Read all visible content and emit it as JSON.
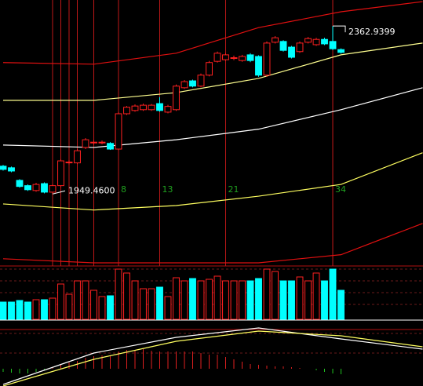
{
  "chart_data": {
    "type": "candlestick",
    "x": [
      -6,
      -5,
      -4,
      -3,
      -2,
      -1,
      0,
      1,
      2,
      3,
      4,
      5,
      6,
      7,
      8,
      9,
      10,
      11,
      12,
      13,
      14,
      15,
      16,
      17,
      18,
      19,
      20,
      21,
      22,
      23,
      24,
      25,
      26,
      27,
      28,
      29,
      30,
      31,
      32,
      33,
      34,
      35
    ],
    "open": [
      2018,
      2014,
      1983,
      1970,
      1958,
      1975,
      1954,
      1970,
      2027,
      2026,
      2064,
      2076,
      2076,
      2074,
      2060,
      2147,
      2155,
      2157,
      2157,
      2172,
      2151,
      2157,
      2211,
      2228,
      2215,
      2242,
      2276,
      2280,
      2284,
      2278,
      2292,
      2288,
      2242,
      2323,
      2325,
      2311,
      2300,
      2323,
      2317,
      2330,
      2325,
      2305
    ],
    "close": [
      2010,
      2006,
      1968,
      1960,
      1973,
      1954,
      1970,
      2031,
      2028,
      2056,
      2083,
      2077,
      2077,
      2060,
      2147,
      2163,
      2166,
      2168,
      2168,
      2155,
      2165,
      2215,
      2226,
      2215,
      2242,
      2273,
      2296,
      2292,
      2285,
      2288,
      2278,
      2242,
      2321,
      2334,
      2303,
      2286,
      2321,
      2332,
      2330,
      2319,
      2307,
      2298
    ],
    "high": [
      2021,
      2017,
      1986,
      1973,
      1977,
      1978,
      1973,
      2035,
      2033,
      2060,
      2087,
      2082,
      2081,
      2077,
      2151,
      2166,
      2170,
      2172,
      2171,
      2188,
      2169,
      2219,
      2230,
      2231,
      2246,
      2277,
      2300,
      2296,
      2290,
      2292,
      2296,
      2291,
      2325,
      2338,
      2328,
      2314,
      2325,
      2336,
      2334,
      2334,
      2362.9399,
      2308
    ],
    "low": [
      2007,
      2003,
      1965,
      1957,
      1955,
      1951,
      1949.46,
      1966,
      2022,
      2023,
      2060,
      2071,
      2072,
      2058,
      2057,
      2144,
      2152,
      2154,
      2154,
      2152,
      2148,
      2154,
      2208,
      2212,
      2212,
      2239,
      2273,
      2277,
      2279,
      2275,
      2274,
      2238,
      2238,
      2320,
      2300,
      2283,
      2297,
      2320,
      2314,
      2316,
      2304,
      2295
    ],
    "up_color": "#ff2020",
    "down_color": "#00ffff",
    "xlim": [
      -6.38,
      44.95
    ],
    "ylim": [
      1780,
      2427
    ],
    "annotations": [
      {
        "value": 2362.9399,
        "label": "2362.9399"
      },
      {
        "value": 1949.46,
        "label": "1949.4600"
      }
    ],
    "xticks": [
      0,
      1,
      2,
      3,
      5,
      8,
      13,
      21,
      34
    ],
    "xtick_labels": [
      null,
      null,
      null,
      null,
      null,
      "8",
      "13",
      "21",
      "34"
    ],
    "line_x": [
      -6,
      5,
      15,
      25,
      35,
      44.9
    ],
    "lines": [
      {
        "color": "#e01010",
        "values": [
          2273,
          2269,
          2296,
          2359,
          2398,
          2423
        ]
      },
      {
        "color": "#ffff90",
        "values": [
          2180,
          2180,
          2199,
          2234,
          2292,
          2321
        ]
      },
      {
        "color": "#ffffff",
        "values": [
          2070,
          2064,
          2083,
          2109,
          2157,
          2211
        ]
      },
      {
        "color": "#ffff60",
        "values": [
          1925,
          1910,
          1921,
          1944,
          1973,
          2051
        ]
      },
      {
        "color": "#e01010",
        "values": [
          1790,
          1780,
          1780,
          1780,
          1800,
          1877
        ]
      }
    ],
    "volume": [
      22,
      22,
      24,
      22,
      25,
      25,
      27,
      45,
      32,
      49,
      49,
      37,
      29,
      30,
      64,
      59,
      49,
      39,
      39,
      41,
      29,
      53,
      49,
      52,
      49,
      51,
      55,
      49,
      49,
      49,
      49,
      52,
      64,
      61,
      49,
      49,
      54,
      49,
      59,
      49,
      64,
      37
    ],
    "vlim": [
      0,
      67
    ],
    "macd_hist": [
      -4,
      -5,
      -6,
      -6,
      -4,
      -2,
      2,
      6,
      8,
      10,
      14,
      16,
      17,
      17,
      22,
      24,
      24,
      25,
      23,
      22,
      22,
      22,
      22,
      22,
      20,
      18,
      18,
      15,
      12,
      9,
      6,
      5,
      4,
      3,
      3,
      2,
      1,
      0,
      -2,
      -4,
      -6,
      -7
    ],
    "mlim": [
      -22,
      60
    ],
    "macd_lines": [
      {
        "color": "#ffffff",
        "values": [
          -20,
          20,
          40,
          52,
          38,
          25
        ]
      },
      {
        "color": "#ffff60",
        "values": [
          -22,
          12,
          35,
          48,
          42,
          28
        ]
      }
    ]
  }
}
